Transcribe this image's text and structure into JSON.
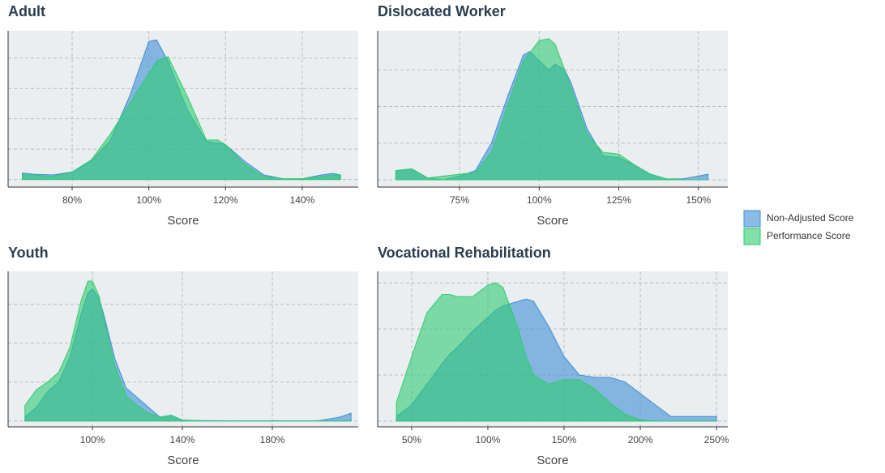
{
  "chart_data": [
    {
      "type": "area",
      "title": "Adult",
      "x_label": "Score",
      "x": [
        67,
        70,
        75,
        80,
        85,
        90,
        95,
        100,
        102,
        105,
        110,
        115,
        118,
        120,
        125,
        130,
        135,
        140,
        145,
        148,
        150
      ],
      "series": [
        {
          "name": "Non-Adjusted Score",
          "color": "#3d8fd6",
          "values": [
            0.43,
            0.35,
            0.3,
            0.5,
            1.2,
            2.6,
            5.5,
            9.1,
            9.2,
            7.8,
            4.6,
            2.5,
            2.4,
            2.3,
            1.2,
            0.3,
            0.05,
            0.05,
            0.3,
            0.4,
            0.3
          ]
        },
        {
          "name": "Performance Score",
          "color": "#2ecc71",
          "values": [
            0.3,
            0.3,
            0.2,
            0.5,
            1.3,
            3.0,
            5.0,
            7.0,
            7.8,
            8.1,
            5.5,
            2.6,
            2.6,
            2.3,
            1.0,
            0.2,
            0.05,
            0.05,
            0.2,
            0.3,
            0.3
          ]
        }
      ],
      "xlim": [
        63.3,
        154.6
      ],
      "xticks": [
        {
          "value": 80,
          "label": "80%"
        },
        {
          "value": 100,
          "label": "100%"
        },
        {
          "value": 120,
          "label": "120%"
        },
        {
          "value": 140,
          "label": "140%"
        }
      ],
      "ylim": [
        -0.5,
        9.8
      ],
      "yticks": [
        0,
        2,
        4,
        6,
        8
      ],
      "grid": true
    },
    {
      "type": "area",
      "title": "Dislocated Worker",
      "x_label": "Score",
      "x": [
        55,
        60,
        65,
        70,
        75,
        80,
        85,
        90,
        95,
        97,
        100,
        103,
        105,
        108,
        110,
        115,
        120,
        125,
        130,
        135,
        140,
        145,
        150,
        153
      ],
      "series": [
        {
          "name": "Non-Adjusted Score",
          "color": "#3d8fd6",
          "values": [
            0.5,
            0.6,
            0.1,
            0.0,
            0.2,
            0.5,
            2.0,
            4.5,
            6.8,
            7.0,
            6.5,
            6.0,
            6.3,
            6.0,
            5.3,
            2.8,
            1.3,
            1.2,
            0.8,
            0.3,
            0.05,
            0.05,
            0.2,
            0.3
          ]
        },
        {
          "name": "Performance Score",
          "color": "#2ecc71",
          "values": [
            0.5,
            0.6,
            0.1,
            0.2,
            0.3,
            0.4,
            1.5,
            4.0,
            6.5,
            6.9,
            7.6,
            7.7,
            7.4,
            6.0,
            5.0,
            2.5,
            1.5,
            1.4,
            0.8,
            0.3,
            0.05,
            0,
            0,
            0
          ]
        }
      ],
      "xlim": [
        49.3,
        159.2
      ],
      "xticks": [
        {
          "value": 75,
          "label": "75%"
        },
        {
          "value": 100,
          "label": "100%"
        },
        {
          "value": 125,
          "label": "125%"
        },
        {
          "value": 150,
          "label": "150%"
        }
      ],
      "ylim": [
        -0.4,
        8.13
      ],
      "yticks": [
        0,
        2,
        4,
        6
      ],
      "grid": true
    },
    {
      "type": "area",
      "title": "Youth",
      "x_label": "Score",
      "x": [
        70,
        75,
        80,
        85,
        90,
        95,
        98,
        100,
        103,
        105,
        110,
        115,
        120,
        125,
        130,
        135,
        140,
        150,
        160,
        180,
        200,
        210,
        215
      ],
      "series": [
        {
          "name": "Non-Adjusted Score",
          "color": "#3d8fd6",
          "values": [
            0.2,
            0.7,
            1.5,
            2.0,
            3.3,
            5.5,
            6.6,
            6.8,
            6.3,
            5.5,
            3.2,
            1.7,
            1.2,
            0.7,
            0.2,
            0.3,
            0.05,
            0.02,
            0.01,
            0.01,
            0.01,
            0.2,
            0.4
          ]
        },
        {
          "name": "Performance Score",
          "color": "#2ecc71",
          "values": [
            0.8,
            1.6,
            2.0,
            2.5,
            3.8,
            6.2,
            7.2,
            7.2,
            6.4,
            5.3,
            2.8,
            1.3,
            0.8,
            0.4,
            0.2,
            0.3,
            0.05,
            0,
            0,
            0,
            0,
            0,
            0
          ]
        }
      ],
      "xlim": [
        62.5,
        218.2
      ],
      "xticks": [
        {
          "value": 100,
          "label": "100%"
        },
        {
          "value": 140,
          "label": "140%"
        },
        {
          "value": 180,
          "label": "180%"
        }
      ],
      "ylim": [
        -0.3,
        7.7
      ],
      "yticks": [
        0,
        2,
        4,
        6
      ],
      "grid": true
    },
    {
      "type": "area",
      "title": "Vocational Rehabilitation",
      "x_label": "Score",
      "x": [
        40,
        50,
        60,
        70,
        75,
        80,
        90,
        100,
        105,
        110,
        120,
        125,
        130,
        140,
        150,
        160,
        170,
        180,
        190,
        200,
        210,
        220,
        230,
        250
      ],
      "series": [
        {
          "name": "Non-Adjusted Score",
          "color": "#3d8fd6",
          "values": [
            0.2,
            0.7,
            1.6,
            2.5,
            2.9,
            3.2,
            3.9,
            4.5,
            4.8,
            5.0,
            5.2,
            5.3,
            5.2,
            4.1,
            2.8,
            2.0,
            1.9,
            1.9,
            1.7,
            1.2,
            0.7,
            0.2,
            0.2,
            0.2
          ]
        },
        {
          "name": "Performance Score",
          "color": "#2ecc71",
          "values": [
            0.8,
            2.8,
            4.7,
            5.5,
            5.5,
            5.4,
            5.4,
            5.9,
            6.0,
            5.8,
            4.0,
            2.8,
            2.0,
            1.6,
            1.8,
            1.8,
            1.4,
            0.8,
            0.3,
            0.05,
            0,
            0,
            0,
            0
          ]
        }
      ],
      "xlim": [
        27.7,
        257.4
      ],
      "xticks": [
        {
          "value": 50,
          "label": "50%"
        },
        {
          "value": 100,
          "label": "100%"
        },
        {
          "value": 150,
          "label": "150%"
        },
        {
          "value": 200,
          "label": "200%"
        },
        {
          "value": 250,
          "label": "250%"
        }
      ],
      "ylim": [
        -0.25,
        6.5
      ],
      "yticks": [
        0,
        2,
        4,
        6
      ],
      "grid": true
    }
  ]
}
